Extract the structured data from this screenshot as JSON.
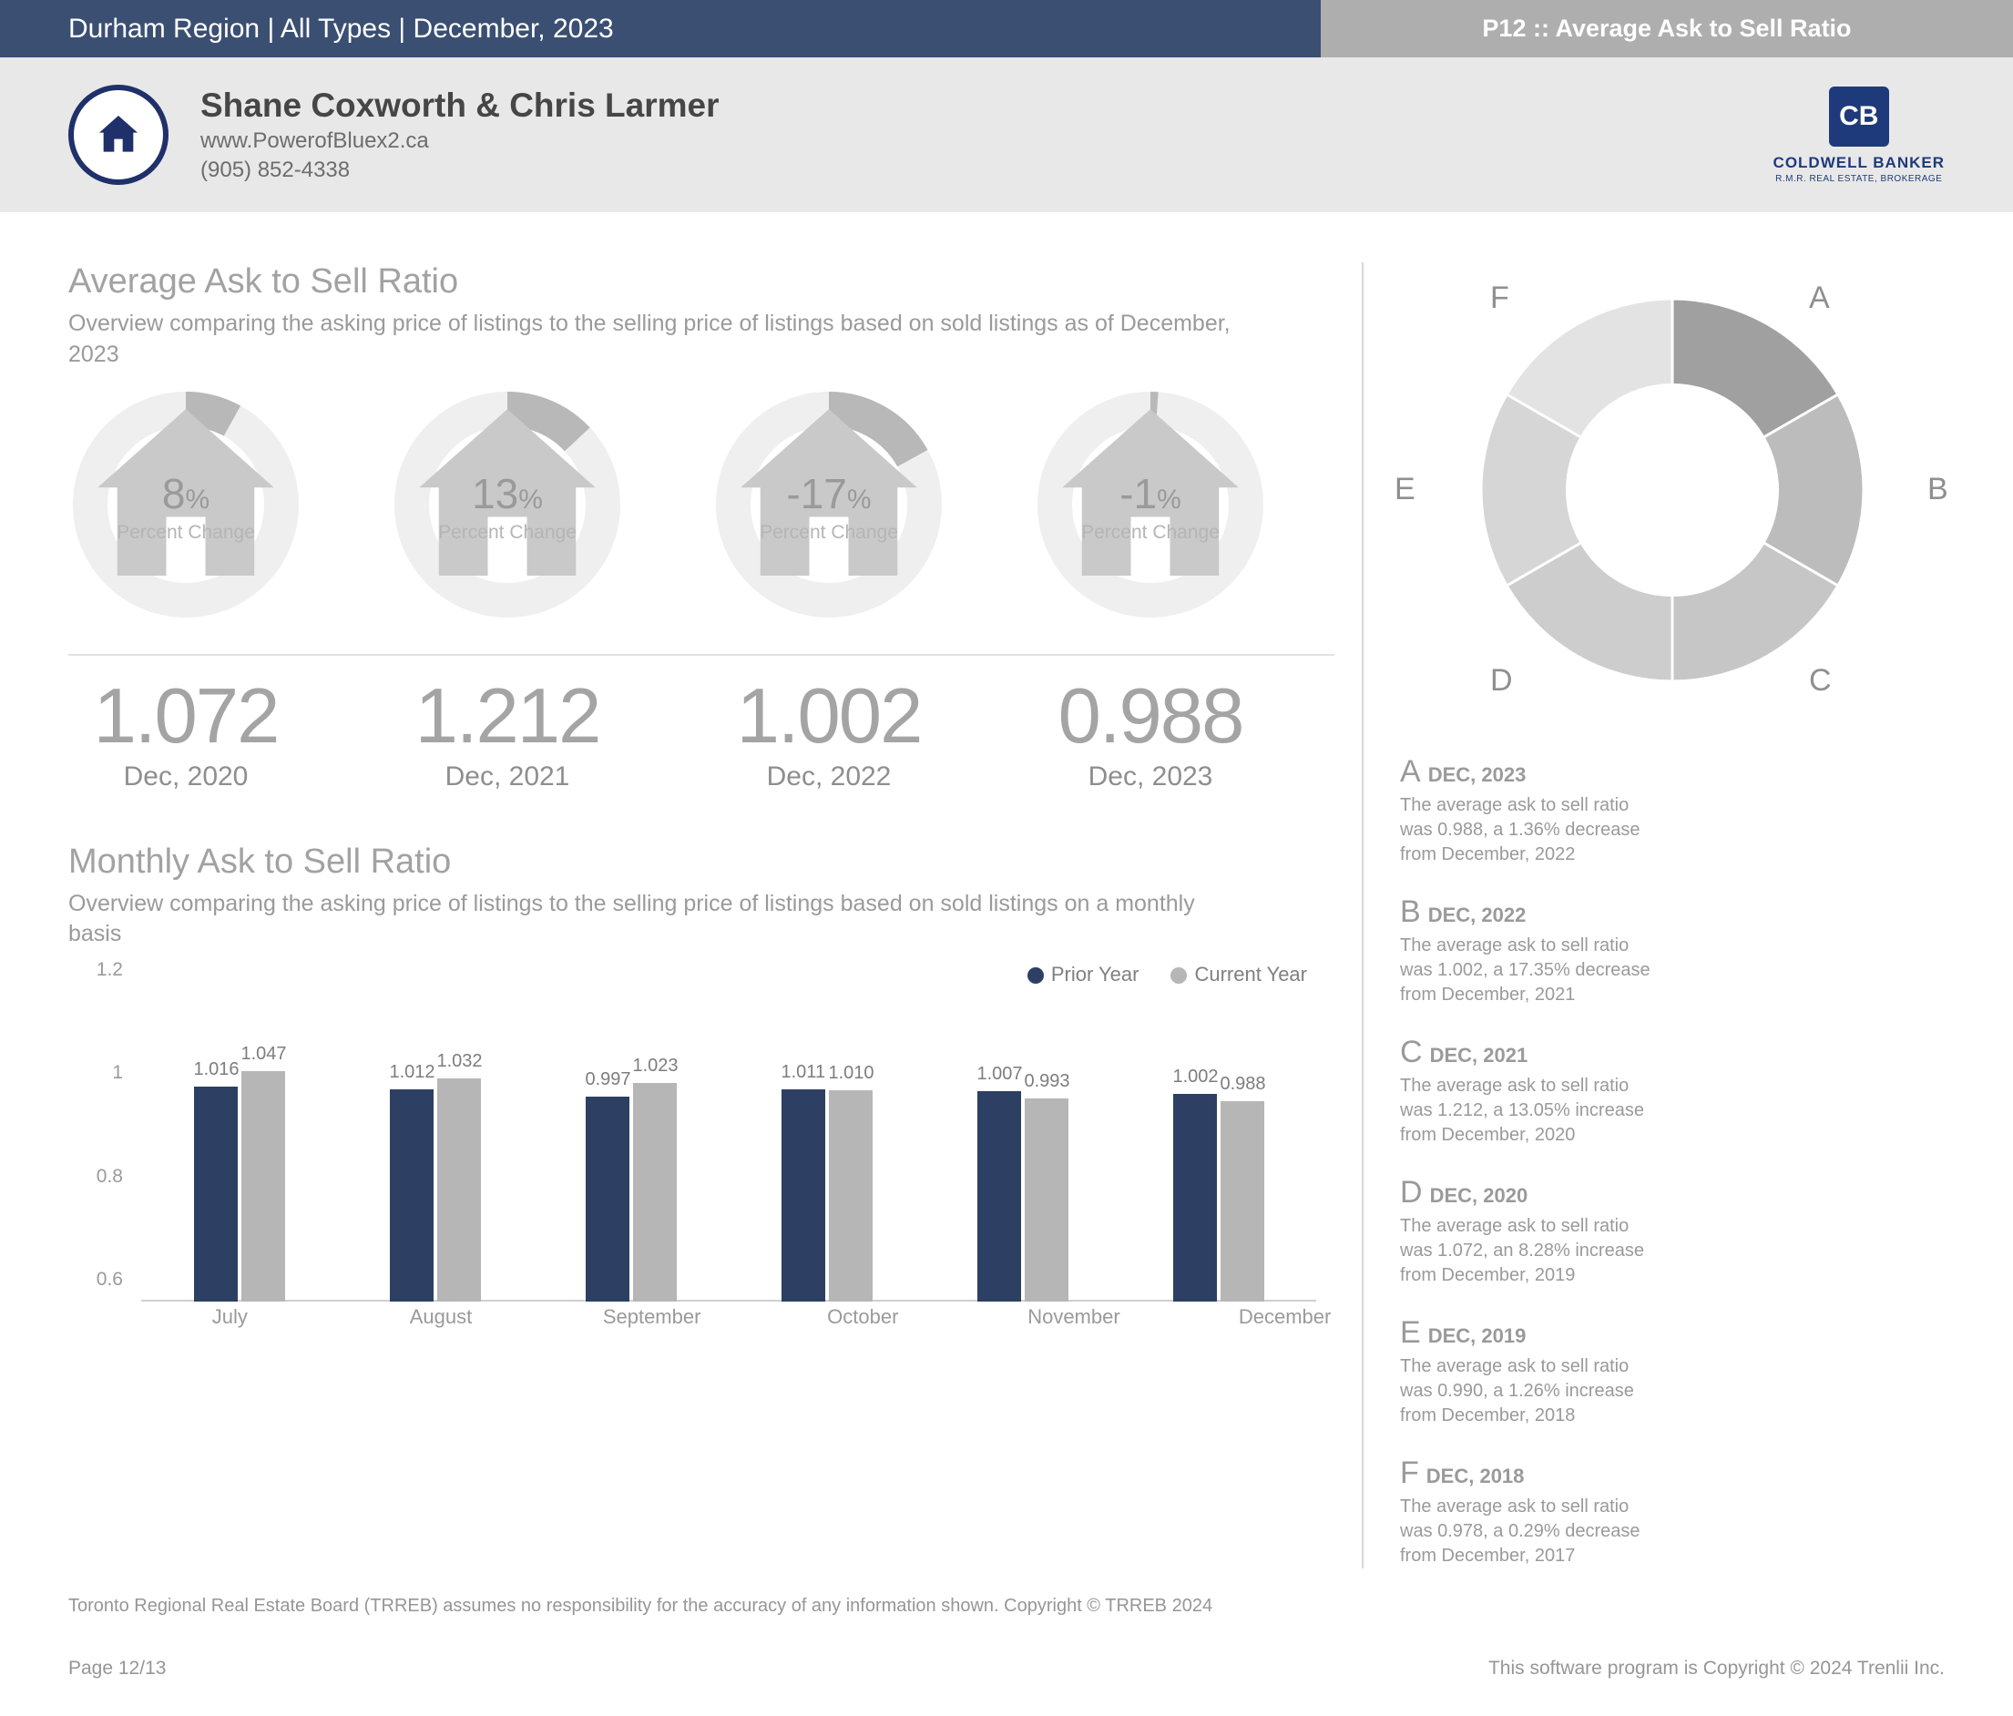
{
  "topbar": {
    "left": "Durham Region | All Types | December, 2023",
    "right": "P12 :: Average Ask to Sell Ratio"
  },
  "agent": {
    "name": "Shane Coxworth & Chris Larmer",
    "website": "www.PowerofBluex2.ca",
    "phone": "(905) 852-4338"
  },
  "brokerage": {
    "badge": "CB",
    "name": "COLDWELL BANKER",
    "sub": "R.M.R. REAL ESTATE, BROKERAGE"
  },
  "section1": {
    "title": "Average Ask to Sell Ratio",
    "subtitle": "Overview comparing the asking price of listings to the selling price of listings based on sold listings as of December, 2023"
  },
  "gauges": [
    {
      "pct": "8",
      "sign": "%",
      "label": "Percent Change",
      "sweep_deg": 29,
      "color": "#b8b8b8"
    },
    {
      "pct": "13",
      "sign": "%",
      "label": "Percent Change",
      "sweep_deg": 47,
      "color": "#b8b8b8"
    },
    {
      "pct": "-17",
      "sign": "%",
      "label": "Percent Change",
      "sweep_deg": 61,
      "color": "#b8b8b8"
    },
    {
      "pct": "-1",
      "sign": "%",
      "label": "Percent Change",
      "sweep_deg": 4,
      "color": "#b8b8b8"
    }
  ],
  "gauge_track_color": "#efefef",
  "bigvals": [
    {
      "num": "1.072",
      "date": "Dec, 2020"
    },
    {
      "num": "1.212",
      "date": "Dec, 2021"
    },
    {
      "num": "1.002",
      "date": "Dec, 2022"
    },
    {
      "num": "0.988",
      "date": "Dec, 2023"
    }
  ],
  "section2": {
    "title": "Monthly Ask to Sell Ratio",
    "subtitle": "Overview comparing the asking price of listings to the selling price of listings based on sold listings on a monthly basis"
  },
  "barchart": {
    "type": "bar",
    "ymin": 0.6,
    "ymax": 1.2,
    "yticks": [
      0.6,
      0.8,
      1,
      1.2
    ],
    "categories": [
      "July",
      "August",
      "September",
      "October",
      "November",
      "December"
    ],
    "series": [
      {
        "name": "Prior Year",
        "color": "#2d3f63",
        "values": [
          1.016,
          1.012,
          0.997,
          1.011,
          1.007,
          1.002
        ]
      },
      {
        "name": "Current Year",
        "color": "#b6b6b6",
        "values": [
          1.047,
          1.032,
          1.023,
          1.01,
          0.993,
          0.988
        ]
      }
    ]
  },
  "donut": {
    "segments": [
      {
        "label": "A",
        "color": "#a0a0a0"
      },
      {
        "label": "B",
        "color": "#bcbcbc"
      },
      {
        "label": "C",
        "color": "#c6c6c6"
      },
      {
        "label": "D",
        "color": "#cdcdcd"
      },
      {
        "label": "E",
        "color": "#d6d6d6"
      },
      {
        "label": "F",
        "color": "#e3e3e3"
      }
    ],
    "inner_ratio": 0.55,
    "stroke": "#ffffff"
  },
  "captions": [
    {
      "letter": "A",
      "date": "DEC, 2023",
      "desc": "The average ask to sell ratio was 0.988, a 1.36% decrease from December, 2022"
    },
    {
      "letter": "B",
      "date": "DEC, 2022",
      "desc": "The average ask to sell ratio was 1.002, a 17.35% decrease from December, 2021"
    },
    {
      "letter": "C",
      "date": "DEC, 2021",
      "desc": "The average ask to sell ratio was 1.212, a 13.05% increase from December, 2020"
    },
    {
      "letter": "D",
      "date": "DEC, 2020",
      "desc": "The average ask to sell ratio was 1.072, an 8.28% increase from December, 2019"
    },
    {
      "letter": "E",
      "date": "DEC, 2019",
      "desc": "The average ask to sell ratio was 0.990, a 1.26% increase from December, 2018"
    },
    {
      "letter": "F",
      "date": "DEC, 2018",
      "desc": "The average ask to sell ratio was 0.978, a 0.29% decrease from December, 2017"
    }
  ],
  "footer": {
    "disclaimer": "Toronto Regional Real Estate Board (TRREB) assumes no responsibility for the accuracy of any information shown. Copyright © TRREB 2024",
    "page": "Page 12/13",
    "software": "This software program is Copyright © 2024 Trenlii Inc."
  }
}
